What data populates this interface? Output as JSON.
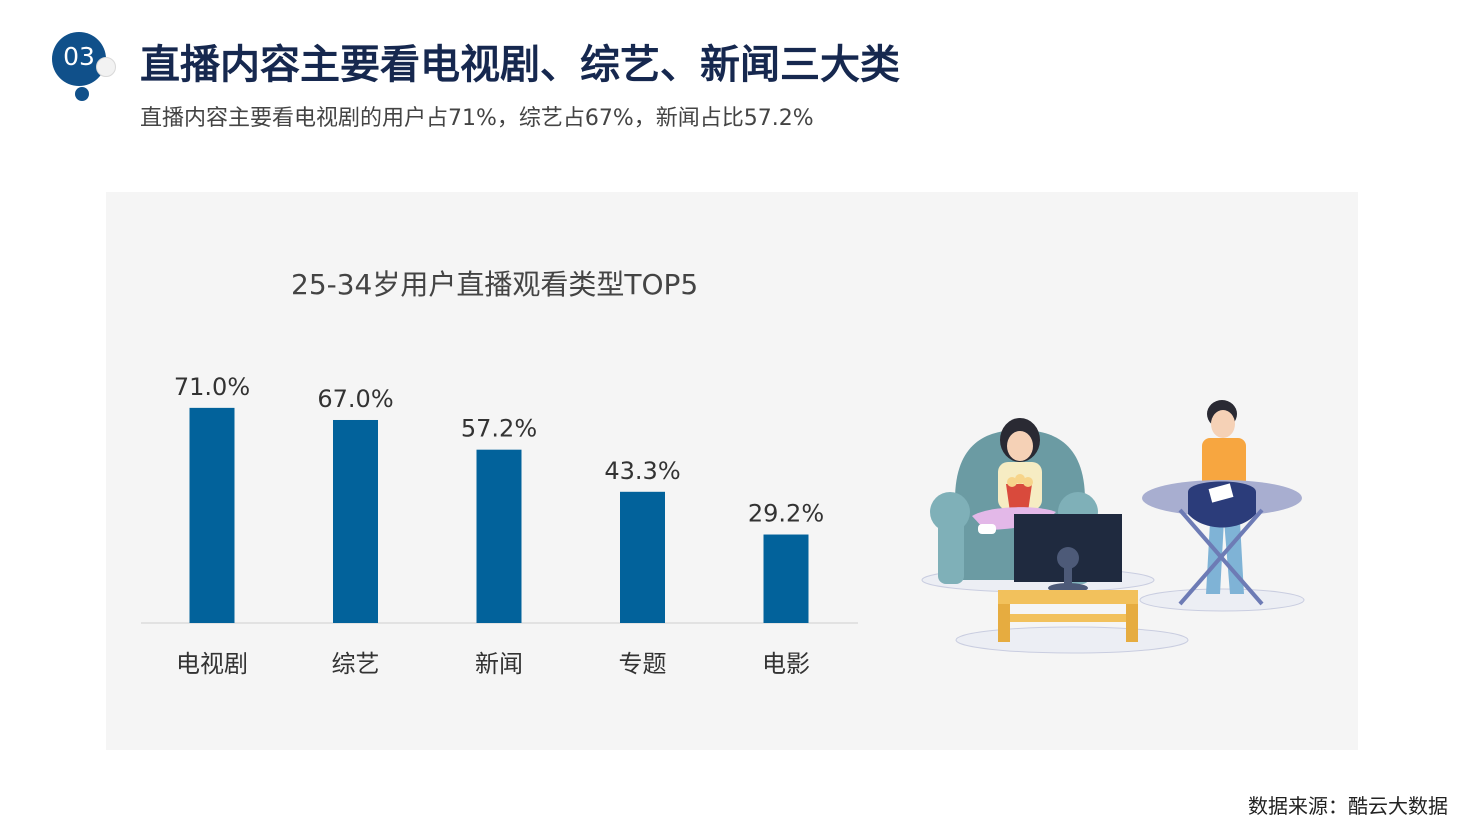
{
  "header": {
    "number": "03",
    "title": "直播内容主要看电视剧、综艺、新闻三大类",
    "subtitle": "直播内容主要看电视剧的用户占71%，综艺占67%，新闻占比57.2%"
  },
  "chart_data": {
    "type": "bar",
    "title": "25-34岁用户直播观看类型TOP5",
    "categories": [
      "电视剧",
      "综艺",
      "新闻",
      "专题",
      "电影"
    ],
    "values": [
      71.0,
      67.0,
      57.2,
      43.3,
      29.2
    ],
    "value_labels": [
      "71.0%",
      "67.0%",
      "57.2%",
      "43.3%",
      "29.2%"
    ],
    "ylim": [
      0,
      100
    ],
    "grid": false,
    "bar_color": "#02629b"
  },
  "footer": {
    "source": "数据来源：酷云大数据"
  },
  "colors": {
    "accent": "#10508a",
    "title": "#16284f",
    "panel": "#f5f5f5"
  }
}
